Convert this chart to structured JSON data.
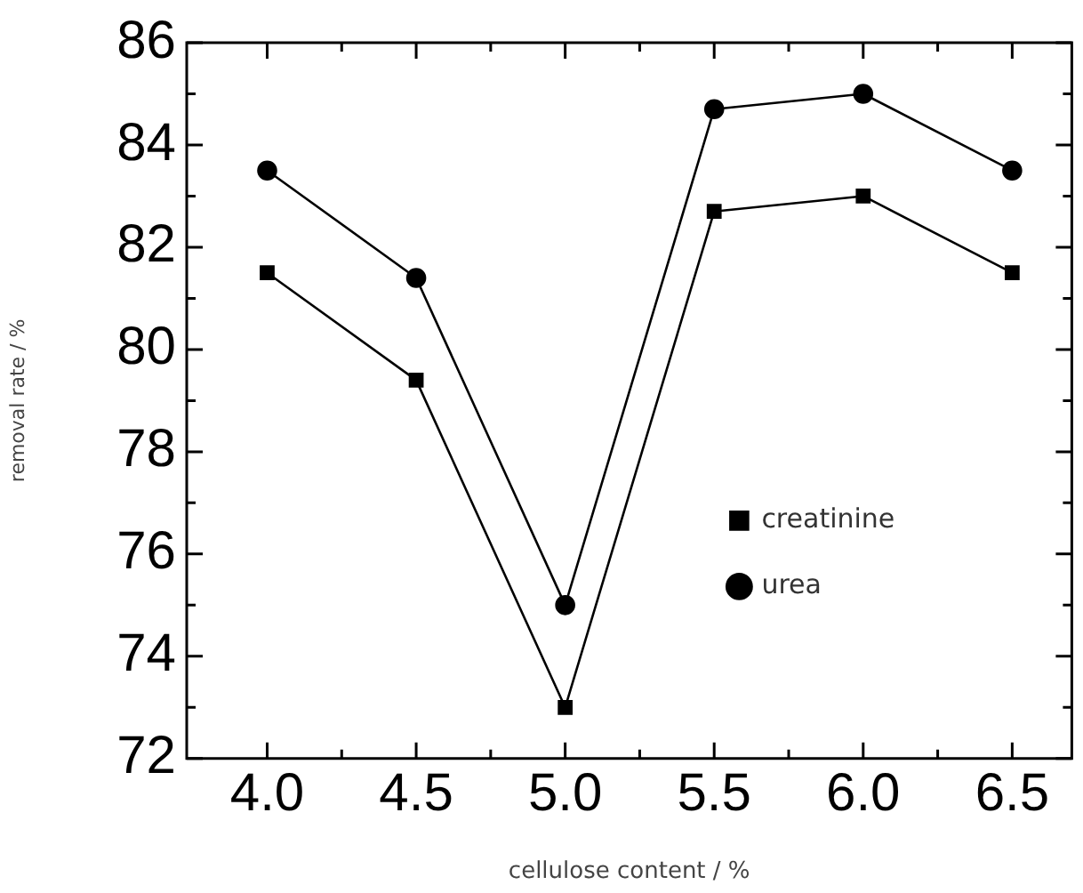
{
  "chart_data": {
    "type": "line",
    "xlabel": "cellulose content / %",
    "ylabel": "removal rate / %",
    "x": [
      4.0,
      4.5,
      5.0,
      5.5,
      6.0,
      6.5
    ],
    "series": [
      {
        "name": "creatinine",
        "color": "#000000",
        "marker": "square",
        "values": [
          81.5,
          79.4,
          73.0,
          82.7,
          83.0,
          81.5
        ]
      },
      {
        "name": "urea",
        "color": "#000000",
        "marker": "circle",
        "values": [
          83.5,
          81.4,
          75.0,
          84.7,
          85.0,
          83.5
        ]
      }
    ],
    "xlim": [
      3.73,
      6.7
    ],
    "xticks": [
      {
        "value": 4.0,
        "label": "4.0"
      },
      {
        "value": 4.25,
        "label": null
      },
      {
        "value": 4.5,
        "label": "4.5"
      },
      {
        "value": 4.75,
        "label": null
      },
      {
        "value": 5.0,
        "label": "5.0"
      },
      {
        "value": 5.25,
        "label": null
      },
      {
        "value": 5.5,
        "label": "5.5"
      },
      {
        "value": 5.75,
        "label": null
      },
      {
        "value": 6.0,
        "label": "6.0"
      },
      {
        "value": 6.25,
        "label": null
      },
      {
        "value": 6.5,
        "label": "6.5"
      }
    ],
    "ylim": [
      72,
      86
    ],
    "yticks": [
      72,
      {
        "value": 73,
        "label": null
      },
      74,
      {
        "value": 75,
        "label": null
      },
      76,
      {
        "value": 77,
        "label": null
      },
      78,
      {
        "value": 79,
        "label": null
      },
      80,
      {
        "value": 81,
        "label": null
      },
      82,
      {
        "value": 83,
        "label": null
      },
      84,
      {
        "value": 85,
        "label": null
      },
      86
    ],
    "grid": false,
    "legend": "bottom right",
    "line_style": "solid"
  }
}
